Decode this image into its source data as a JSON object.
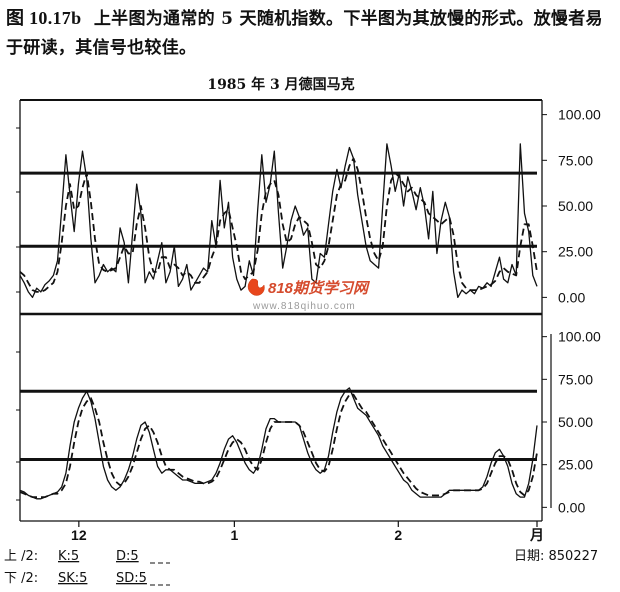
{
  "caption": {
    "figure_no": "图 10.17b",
    "text": "上半图为通常的 5 天随机指数。下半图为其放慢的形式。放慢者易于研读，其信号也较佳。"
  },
  "chart_data": {
    "type": "line",
    "title": "1985 年 3 月德国马克",
    "x_ticks": [
      {
        "label": "12",
        "x": 14
      },
      {
        "label": "1",
        "x": 51
      },
      {
        "label": "2",
        "x": 90
      },
      {
        "label": "月",
        "x": 123
      }
    ],
    "xlim": [
      0,
      123
    ],
    "panels": [
      {
        "name": "upper",
        "ylim": [
          -8,
          108
        ],
        "y_ticks": [
          "100.00",
          "75.00",
          "50.00",
          "25.00",
          "0.00"
        ],
        "y_tick_values": [
          100,
          75,
          50,
          25,
          0
        ],
        "reference_lines": [
          68,
          28
        ],
        "series": [
          {
            "style": "solid",
            "values": [
              12,
              8,
              3,
              0,
              5,
              3,
              7,
              9,
              12,
              20,
              48,
              78,
              56,
              36,
              62,
              80,
              65,
              32,
              8,
              12,
              18,
              14,
              16,
              14,
              38,
              30,
              8,
              35,
              62,
              46,
              8,
              14,
              10,
              20,
              30,
              8,
              14,
              28,
              6,
              10,
              18,
              4,
              8,
              12,
              16,
              14,
              42,
              28,
              64,
              38,
              52,
              22,
              10,
              4,
              6,
              20,
              12,
              48,
              78,
              52,
              62,
              80,
              46,
              16,
              28,
              42,
              50,
              44,
              34,
              38,
              10,
              8,
              24,
              22,
              40,
              58,
              70,
              60,
              72,
              82,
              76,
              56,
              42,
              28,
              20,
              18,
              16,
              50,
              84,
              72,
              58,
              68,
              50,
              66,
              58,
              48,
              60,
              50,
              32,
              58,
              24,
              42,
              52,
              44,
              14,
              0,
              4,
              2,
              4,
              2,
              6,
              5,
              8,
              6,
              14,
              22,
              10,
              8,
              18,
              12,
              84,
              46,
              36,
              12,
              6
            ]
          },
          {
            "style": "dashed",
            "values": [
              14,
              12,
              8,
              4,
              3,
              3,
              4,
              6,
              8,
              14,
              30,
              50,
              62,
              48,
              50,
              60,
              68,
              52,
              32,
              18,
              15,
              14,
              15,
              16,
              22,
              28,
              24,
              24,
              40,
              50,
              38,
              22,
              14,
              14,
              22,
              22,
              16,
              18,
              16,
              12,
              14,
              12,
              8,
              8,
              11,
              14,
              22,
              28,
              42,
              46,
              48,
              38,
              28,
              14,
              10,
              12,
              14,
              26,
              46,
              58,
              62,
              64,
              56,
              40,
              30,
              32,
              40,
              44,
              42,
              40,
              30,
              18,
              16,
              20,
              28,
              42,
              56,
              62,
              64,
              72,
              76,
              70,
              58,
              44,
              32,
              24,
              20,
              28,
              50,
              64,
              68,
              66,
              62,
              58,
              60,
              56,
              54,
              52,
              46,
              44,
              42,
              40,
              42,
              44,
              34,
              18,
              8,
              5,
              4,
              4,
              4,
              5,
              6,
              7,
              9,
              14,
              16,
              14,
              13,
              12,
              28,
              40,
              40,
              28,
              14
            ]
          }
        ]
      },
      {
        "name": "lower",
        "ylim": [
          -8,
          108
        ],
        "y_ticks": [
          "100.00",
          "75.00",
          "50.00",
          "25.00",
          "0.00"
        ],
        "y_tick_values": [
          100,
          75,
          50,
          25,
          0
        ],
        "reference_lines": [
          68,
          28
        ],
        "series": [
          {
            "style": "solid",
            "values": [
              10,
              9,
              7,
              6,
              5,
              5,
              6,
              7,
              8,
              9,
              12,
              20,
              36,
              50,
              58,
              64,
              68,
              62,
              52,
              38,
              24,
              16,
              12,
              10,
              12,
              16,
              22,
              30,
              40,
              48,
              50,
              44,
              34,
              24,
              20,
              22,
              22,
              20,
              18,
              16,
              16,
              15,
              14,
              14,
              14,
              15,
              16,
              20,
              26,
              34,
              40,
              42,
              38,
              32,
              26,
              22,
              20,
              24,
              34,
              46,
              52,
              52,
              50,
              50,
              50,
              50,
              50,
              48,
              40,
              32,
              26,
              22,
              20,
              22,
              30,
              44,
              56,
              64,
              68,
              70,
              64,
              58,
              56,
              54,
              50,
              46,
              42,
              36,
              32,
              28,
              24,
              20,
              16,
              14,
              10,
              8,
              6,
              6,
              6,
              6,
              6,
              6,
              8,
              10,
              10,
              10,
              10,
              10,
              10,
              10,
              10,
              12,
              18,
              26,
              32,
              34,
              30,
              24,
              14,
              8,
              6,
              6,
              14,
              28,
              48
            ]
          },
          {
            "style": "dashed",
            "values": [
              9,
              8,
              7,
              6,
              6,
              6,
              6,
              7,
              8,
              8,
              10,
              14,
              24,
              38,
              50,
              58,
              62,
              64,
              58,
              50,
              38,
              28,
              20,
              15,
              13,
              14,
              18,
              24,
              32,
              40,
              46,
              48,
              44,
              38,
              30,
              24,
              22,
              22,
              20,
              18,
              17,
              16,
              15,
              15,
              14,
              14,
              15,
              17,
              22,
              28,
              34,
              38,
              40,
              38,
              34,
              28,
              24,
              22,
              28,
              38,
              46,
              50,
              50,
              50,
              50,
              50,
              50,
              48,
              44,
              38,
              32,
              26,
              22,
              21,
              24,
              34,
              46,
              56,
              62,
              66,
              66,
              62,
              58,
              56,
              52,
              48,
              44,
              40,
              36,
              32,
              28,
              24,
              20,
              17,
              14,
              11,
              9,
              8,
              7,
              7,
              7,
              7,
              8,
              9,
              10,
              10,
              10,
              10,
              10,
              10,
              10,
              11,
              14,
              20,
              26,
              30,
              30,
              28,
              22,
              14,
              9,
              7,
              10,
              18,
              32
            ]
          }
        ]
      }
    ]
  },
  "watermark": {
    "brand": "818期货学习网",
    "url": "www.818qihuo.com"
  },
  "footer": {
    "upper_label": "上 /2:",
    "upper_k": "K:5",
    "upper_d": "D:5",
    "lower_label": "下 /2:",
    "lower_sk": "SK:5",
    "lower_sd": "SD:5",
    "date": "日期: 850227"
  }
}
